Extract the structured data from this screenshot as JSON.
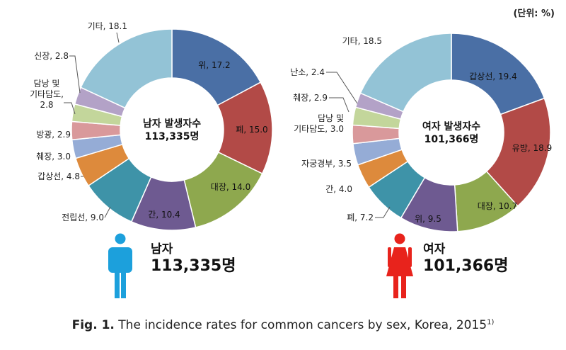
{
  "unit_label": "(단위: %)",
  "caption": {
    "fig": "Fig. 1.",
    "text": "The incidence rates for common cancers by sex, Korea, 2015",
    "sup": "1)"
  },
  "legend": {
    "male": {
      "sex": "남자",
      "total": "113,335명"
    },
    "female": {
      "sex": "여자",
      "total": "101,366명"
    }
  },
  "colors": {
    "male_figure": "#1ca0dc",
    "female_figure": "#e8231c"
  },
  "chart_data": [
    {
      "type": "pie",
      "center_label": [
        "남자 발생자수",
        "113,335명"
      ],
      "slices": [
        {
          "label": "위, 17.2",
          "name": "위",
          "value": 17.2,
          "color": "#4a6fa5"
        },
        {
          "label": "폐, 15.0",
          "name": "폐",
          "value": 15.0,
          "color": "#b24a47"
        },
        {
          "label": "대장, 14.0",
          "name": "대장",
          "value": 14.0,
          "color": "#8ea84e"
        },
        {
          "label": "간, 10.4",
          "name": "간",
          "value": 10.4,
          "color": "#6e5a91"
        },
        {
          "label": "전립선, 9.0",
          "name": "전립선",
          "value": 9.0,
          "color": "#3e93a8"
        },
        {
          "label": "갑상선, 4.8",
          "name": "갑상선",
          "value": 4.8,
          "color": "#dd8a3c"
        },
        {
          "label": "췌장, 3.0",
          "name": "췌장",
          "value": 3.0,
          "color": "#95acd6"
        },
        {
          "label": "방광, 2.9",
          "name": "방광",
          "value": 2.9,
          "color": "#d9999b"
        },
        {
          "label": [
            "담낭 및",
            "기타담도,",
            "2.8"
          ],
          "name": "담낭 및 기타담도",
          "value": 2.8,
          "color": "#c3d69b"
        },
        {
          "label": "신장, 2.8",
          "name": "신장",
          "value": 2.8,
          "color": "#b3a2c7"
        },
        {
          "label": "기타, 18.1",
          "name": "기타",
          "value": 18.1,
          "color": "#93c3d6"
        }
      ]
    },
    {
      "type": "pie",
      "center_label": [
        "여자 발생자수",
        "101,366명"
      ],
      "slices": [
        {
          "label": "갑상선, 19.4",
          "name": "갑상선",
          "value": 19.4,
          "color": "#4a6fa5"
        },
        {
          "label": "유방, 18.9",
          "name": "유방",
          "value": 18.9,
          "color": "#b24a47"
        },
        {
          "label": "대장, 10.7",
          "name": "대장",
          "value": 10.7,
          "color": "#8ea84e"
        },
        {
          "label": "위, 9.5",
          "name": "위",
          "value": 9.5,
          "color": "#6e5a91"
        },
        {
          "label": "폐, 7.2",
          "name": "폐",
          "value": 7.2,
          "color": "#3e93a8"
        },
        {
          "label": "간, 4.0",
          "name": "간",
          "value": 4.0,
          "color": "#dd8a3c"
        },
        {
          "label": "자궁경부, 3.5",
          "name": "자궁경부",
          "value": 3.5,
          "color": "#95acd6"
        },
        {
          "label": [
            "담낭 및",
            "기타담도, 3.0"
          ],
          "name": "담낭 및 기타담도",
          "value": 3.0,
          "color": "#d9999b"
        },
        {
          "label": "췌장, 2.9",
          "name": "췌장",
          "value": 2.9,
          "color": "#c3d69b"
        },
        {
          "label": "난소, 2.4",
          "name": "난소",
          "value": 2.4,
          "color": "#b3a2c7"
        },
        {
          "label": "기타, 18.5",
          "name": "기타",
          "value": 18.5,
          "color": "#93c3d6"
        }
      ]
    }
  ]
}
